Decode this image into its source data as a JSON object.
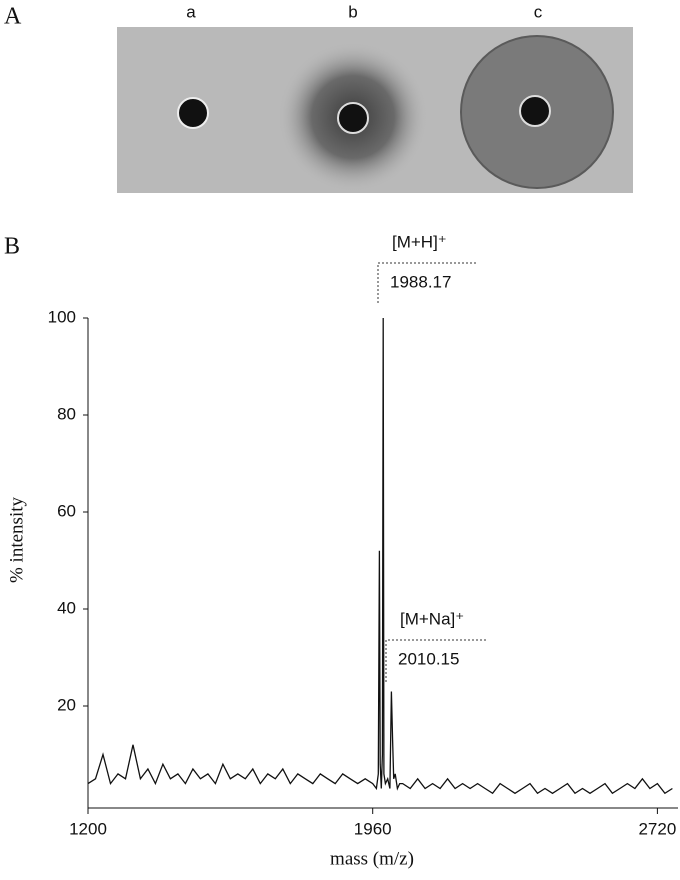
{
  "panel_a": {
    "label": "A",
    "wells": [
      "a",
      "b",
      "c"
    ]
  },
  "panel_b": {
    "label": "B"
  },
  "chart_data": {
    "type": "line",
    "color": "#111111",
    "x_label": "mass (m/z)",
    "y_label": "% intensity",
    "annotations": [
      {
        "text": "[M+H]⁺",
        "mass": "1988.17"
      },
      {
        "text": "[M+Na]⁺",
        "mass": "2010.15"
      }
    ],
    "x": [
      1200,
      1220,
      1240,
      1260,
      1280,
      1300,
      1320,
      1340,
      1360,
      1380,
      1400,
      1420,
      1440,
      1460,
      1480,
      1500,
      1520,
      1540,
      1560,
      1580,
      1600,
      1620,
      1640,
      1660,
      1680,
      1700,
      1720,
      1740,
      1760,
      1780,
      1800,
      1820,
      1840,
      1860,
      1880,
      1900,
      1920,
      1940,
      1960,
      1970,
      1975,
      1978,
      1980,
      1983,
      1986,
      1988,
      1990,
      1994,
      2000,
      2006,
      2010,
      2013,
      2016,
      2020,
      2026,
      2032,
      2040,
      2060,
      2080,
      2100,
      2120,
      2140,
      2160,
      2180,
      2200,
      2220,
      2240,
      2260,
      2280,
      2300,
      2320,
      2340,
      2360,
      2380,
      2400,
      2420,
      2440,
      2460,
      2480,
      2500,
      2520,
      2540,
      2560,
      2580,
      2600,
      2620,
      2640,
      2660,
      2680,
      2700,
      2720,
      2740,
      2760
    ],
    "values": [
      4,
      5,
      10,
      4,
      6,
      5,
      12,
      5,
      7,
      4,
      8,
      5,
      6,
      4,
      7,
      5,
      6,
      4,
      8,
      5,
      6,
      5,
      7,
      4,
      6,
      5,
      7,
      4,
      6,
      5,
      4,
      6,
      5,
      4,
      6,
      5,
      4,
      5,
      4,
      3,
      6,
      52,
      8,
      3,
      10,
      100,
      6,
      4,
      5,
      3,
      23,
      13,
      5,
      6,
      3,
      4,
      4,
      3,
      5,
      3,
      4,
      3,
      5,
      3,
      4,
      3,
      4,
      3,
      2,
      4,
      3,
      2,
      3,
      4,
      2,
      3,
      2,
      3,
      4,
      2,
      3,
      2,
      3,
      4,
      2,
      3,
      4,
      3,
      5,
      3,
      4,
      2,
      3
    ],
    "xlim": [
      1200,
      2775
    ],
    "ylim": [
      0,
      100
    ],
    "xticks": [
      1200,
      1960,
      2720
    ],
    "yticks": [
      20,
      40,
      60,
      80,
      100
    ]
  }
}
